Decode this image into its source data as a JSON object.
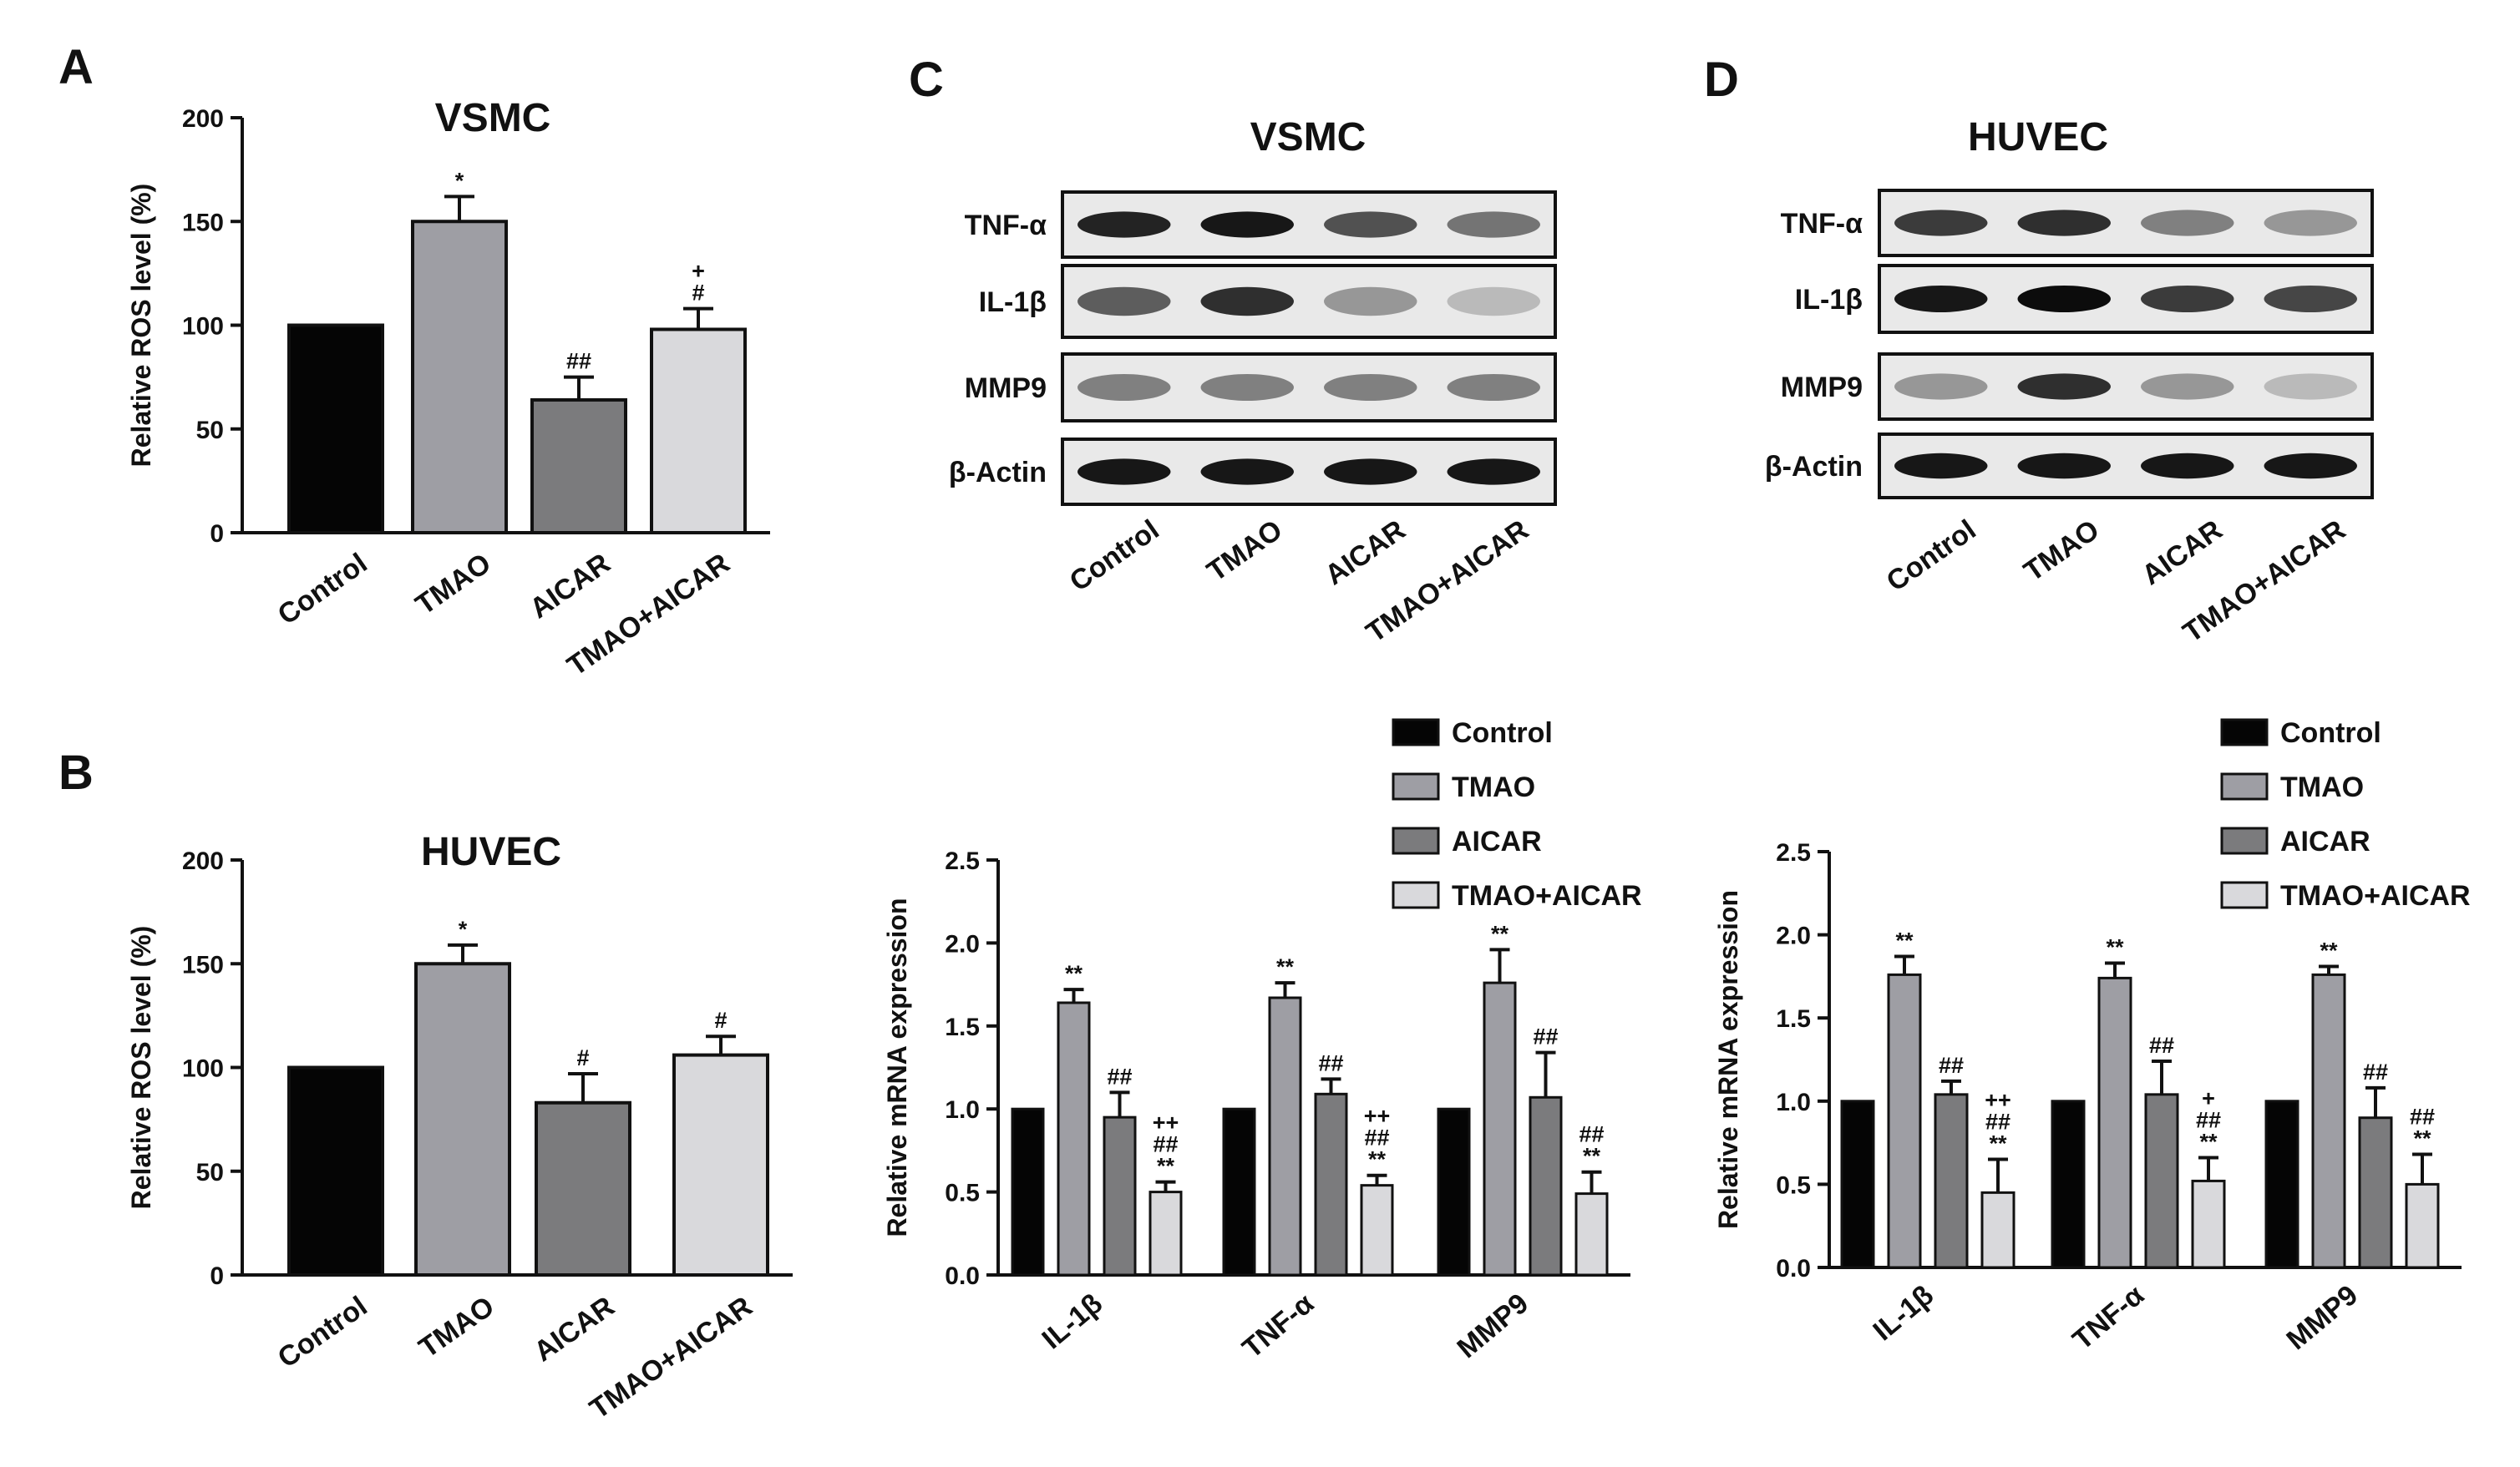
{
  "colors": {
    "Control": "#050505",
    "TMAO": "#9e9ea4",
    "AICAR": "#7b7b7d",
    "TMAO+AICAR": "#d9d9dc"
  },
  "chart_data": [
    {
      "panel": "A",
      "type": "bar",
      "title": "VSMC",
      "ylabel": "Relative ROS level (%)",
      "xlabel": "",
      "ylim": [
        0,
        200
      ],
      "yticks": [
        "0",
        "50",
        "100",
        "150",
        "200"
      ],
      "categories": [
        "Control",
        "TMAO",
        "AICAR",
        "TMAO+AICAR"
      ],
      "values": [
        100,
        150,
        64,
        98
      ],
      "errors": [
        0,
        12,
        11,
        10
      ],
      "annotations": [
        "",
        "*",
        "##",
        "+\n#"
      ]
    },
    {
      "panel": "B",
      "type": "bar",
      "title": "HUVEC",
      "ylabel": "Relative ROS level (%)",
      "xlabel": "",
      "ylim": [
        0,
        200
      ],
      "yticks": [
        "0",
        "50",
        "100",
        "150",
        "200"
      ],
      "categories": [
        "Control",
        "TMAO",
        "AICAR",
        "TMAO+AICAR"
      ],
      "values": [
        100,
        150,
        83,
        106
      ],
      "errors": [
        0,
        9,
        14,
        9
      ],
      "annotations": [
        "",
        "*",
        "#",
        "#"
      ]
    },
    {
      "panel": "C",
      "type": "bar",
      "title": "VSMC",
      "ylabel": "Relative mRNA expression",
      "xlabel": "",
      "ylim": [
        0,
        2.5
      ],
      "yticks": [
        "0.0",
        "0.5",
        "1.0",
        "1.5",
        "2.0",
        "2.5"
      ],
      "categories": [
        "IL-1β",
        "TNF-α",
        "MMP9"
      ],
      "legend_position": "top-right",
      "series": [
        {
          "name": "Control",
          "values": [
            1.0,
            1.0,
            1.0
          ],
          "errors": [
            0,
            0,
            0
          ],
          "annotations": [
            "",
            "",
            ""
          ]
        },
        {
          "name": "TMAO",
          "values": [
            1.64,
            1.67,
            1.76
          ],
          "errors": [
            0.08,
            0.09,
            0.2
          ],
          "annotations": [
            "**",
            "**",
            "**"
          ]
        },
        {
          "name": "AICAR",
          "values": [
            0.95,
            1.09,
            1.07
          ],
          "errors": [
            0.15,
            0.09,
            0.27
          ],
          "annotations": [
            "##",
            "##",
            "##"
          ]
        },
        {
          "name": "TMAO+AICAR",
          "values": [
            0.5,
            0.54,
            0.49
          ],
          "errors": [
            0.06,
            0.06,
            0.13
          ],
          "annotations": [
            "++\n##\n**",
            "++\n##\n**",
            "##\n**"
          ]
        }
      ]
    },
    {
      "panel": "D",
      "type": "bar",
      "title": "HUVEC",
      "ylabel": "Relative mRNA expression",
      "xlabel": "",
      "ylim": [
        0,
        2.5
      ],
      "yticks": [
        "0.0",
        "0.5",
        "1.0",
        "1.5",
        "2.0",
        "2.5"
      ],
      "categories": [
        "IL-1β",
        "TNF-α",
        "MMP9"
      ],
      "legend_position": "top-right",
      "series": [
        {
          "name": "Control",
          "values": [
            1.0,
            1.0,
            1.0
          ],
          "errors": [
            0,
            0,
            0
          ],
          "annotations": [
            "",
            "",
            ""
          ]
        },
        {
          "name": "TMAO",
          "values": [
            1.76,
            1.74,
            1.76
          ],
          "errors": [
            0.11,
            0.09,
            0.05
          ],
          "annotations": [
            "**",
            "**",
            "**"
          ]
        },
        {
          "name": "AICAR",
          "values": [
            1.04,
            1.04,
            0.9
          ],
          "errors": [
            0.08,
            0.2,
            0.18
          ],
          "annotations": [
            "##",
            "##",
            "##"
          ]
        },
        {
          "name": "TMAO+AICAR",
          "values": [
            0.45,
            0.52,
            0.5
          ],
          "errors": [
            0.2,
            0.14,
            0.18
          ],
          "annotations": [
            "++\n##\n**",
            "+\n##\n**",
            "##\n**"
          ]
        }
      ]
    }
  ],
  "blots": [
    {
      "panel": "C",
      "title": "VSMC",
      "rows": [
        "TNF-α",
        "IL-1β",
        "MMP9",
        "β-Actin"
      ],
      "lanes": [
        "Control",
        "TMAO",
        "AICAR",
        "TMAO+AICAR"
      ]
    },
    {
      "panel": "D",
      "title": "HUVEC",
      "rows": [
        "TNF-α",
        "IL-1β",
        "MMP9",
        "β-Actin"
      ],
      "lanes": [
        "Control",
        "TMAO",
        "AICAR",
        "TMAO+AICAR"
      ]
    }
  ]
}
